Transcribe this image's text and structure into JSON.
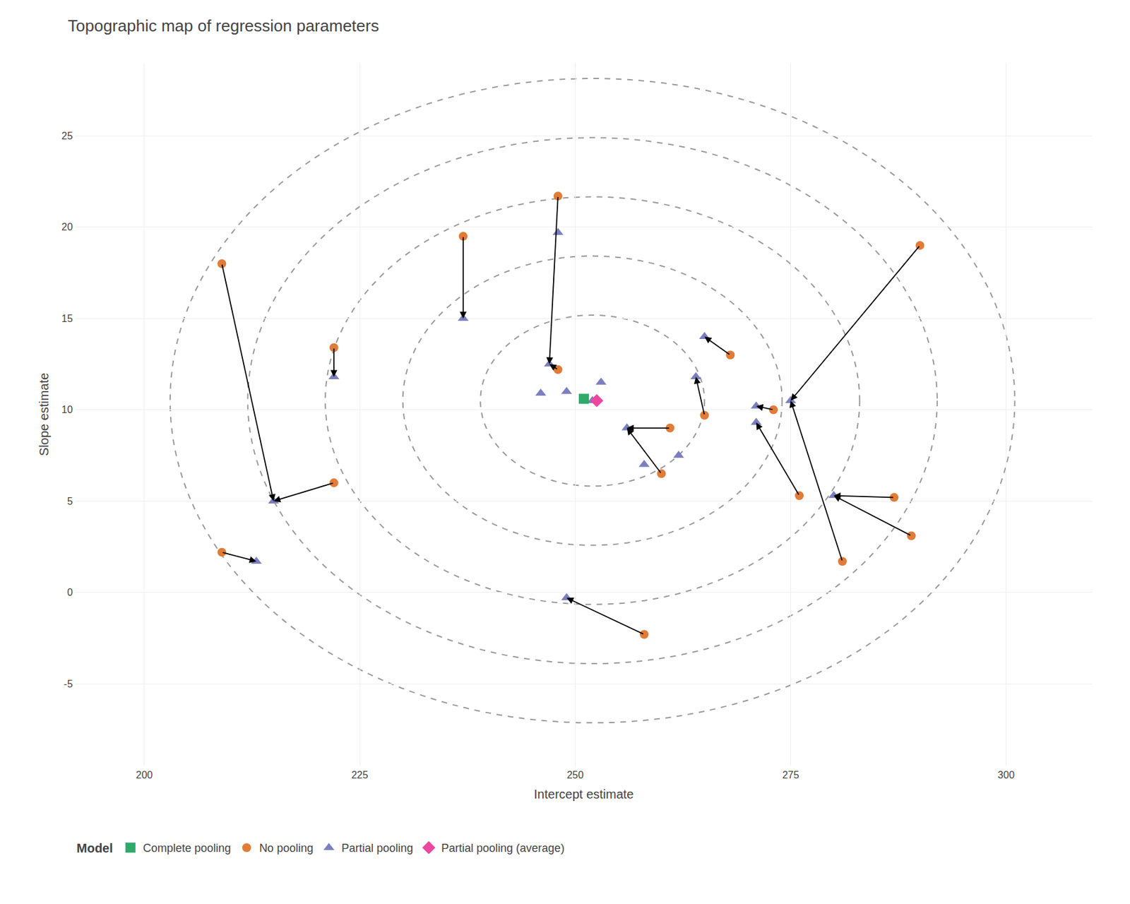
{
  "chart_data": {
    "type": "scatter",
    "title": "Topographic map of regression parameters",
    "xlabel": "Intercept estimate",
    "ylabel": "Slope estimate",
    "xlim": [
      192,
      310
    ],
    "ylim": [
      -9.5,
      29
    ],
    "xticks": [
      200,
      225,
      250,
      275,
      300
    ],
    "yticks": [
      -5,
      0,
      5,
      10,
      15,
      20,
      25
    ],
    "grid": true,
    "legend": "bottom left",
    "legend_title": "Model",
    "series": [
      {
        "name": "Complete pooling",
        "color": "#2eaa6a",
        "marker": "square",
        "x": [
          251.0
        ],
        "y": [
          10.6
        ]
      },
      {
        "name": "No pooling",
        "color": "#e07c38",
        "marker": "circle",
        "x": [
          209,
          209,
          222,
          222,
          237,
          248,
          248,
          258,
          260,
          261,
          265,
          268,
          273,
          276,
          281,
          287,
          289,
          290
        ],
        "y": [
          2.2,
          18.0,
          13.4,
          6.0,
          19.5,
          21.7,
          12.2,
          -2.3,
          6.5,
          9.0,
          9.7,
          13.0,
          10.0,
          5.3,
          1.7,
          5.2,
          3.1,
          19.0
        ]
      },
      {
        "name": "Partial pooling",
        "color": "#7b7fbe",
        "marker": "triangle",
        "x": [
          213,
          215,
          222,
          237,
          246,
          247,
          249,
          252,
          253,
          256,
          258,
          262,
          264,
          265,
          271,
          271,
          275,
          280,
          249,
          248
        ],
        "y": [
          1.7,
          5.0,
          11.8,
          15.0,
          10.9,
          12.5,
          11.0,
          10.5,
          11.5,
          9.0,
          7.0,
          7.5,
          11.8,
          14.0,
          10.2,
          9.3,
          10.5,
          5.3,
          -0.3,
          19.7
        ]
      },
      {
        "name": "Partial pooling (average)",
        "color": "#e9489e",
        "marker": "diamond",
        "x": [
          252.5
        ],
        "y": [
          10.5
        ]
      }
    ],
    "contours": {
      "center": [
        252.0,
        10.5
      ],
      "a": [
        13,
        22,
        31,
        40,
        49
      ],
      "b": [
        4.68,
        7.92,
        11.16,
        14.4,
        17.64
      ],
      "color": "#999999",
      "line_style": "dashed"
    },
    "arrows": {
      "color": "#000000",
      "segments": [
        [
          [
            209,
            2.2
          ],
          [
            213,
            1.7
          ]
        ],
        [
          [
            209,
            18.0
          ],
          [
            215,
            5.0
          ]
        ],
        [
          [
            222,
            13.4
          ],
          [
            222,
            11.8
          ]
        ],
        [
          [
            222,
            6.0
          ],
          [
            215,
            5.0
          ]
        ],
        [
          [
            237,
            19.5
          ],
          [
            237,
            15.0
          ]
        ],
        [
          [
            248,
            21.7
          ],
          [
            247,
            12.5
          ]
        ],
        [
          [
            248,
            12.2
          ],
          [
            247,
            12.5
          ]
        ],
        [
          [
            258,
            -2.3
          ],
          [
            249,
            -0.3
          ]
        ],
        [
          [
            260,
            6.5
          ],
          [
            256,
            9.0
          ]
        ],
        [
          [
            261,
            9.0
          ],
          [
            256,
            9.0
          ]
        ],
        [
          [
            265,
            9.7
          ],
          [
            264,
            11.8
          ]
        ],
        [
          [
            268,
            13.0
          ],
          [
            265,
            14.0
          ]
        ],
        [
          [
            273,
            10.0
          ],
          [
            271,
            10.2
          ]
        ],
        [
          [
            276,
            5.3
          ],
          [
            271,
            9.3
          ]
        ],
        [
          [
            281,
            1.7
          ],
          [
            275,
            10.5
          ]
        ],
        [
          [
            287,
            5.2
          ],
          [
            280,
            5.3
          ]
        ],
        [
          [
            289,
            3.1
          ],
          [
            280,
            5.3
          ]
        ],
        [
          [
            290,
            19.0
          ],
          [
            275,
            10.5
          ]
        ]
      ]
    }
  }
}
